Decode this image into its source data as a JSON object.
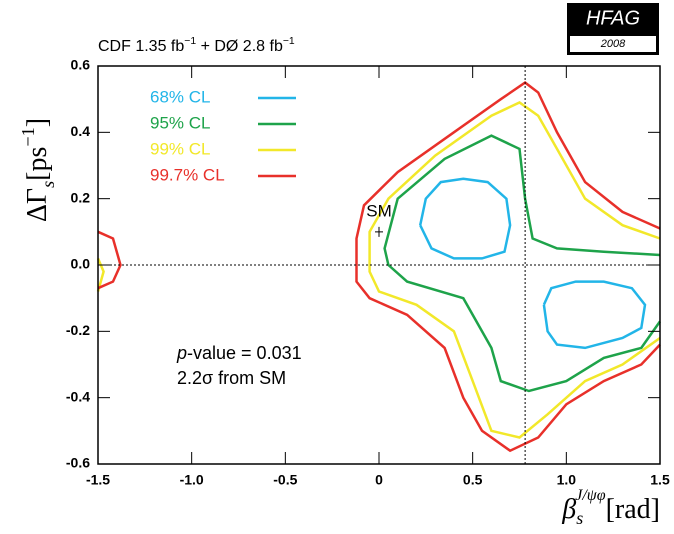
{
  "chart_data": {
    "type": "contour",
    "title_parts": [
      "CDF  1.35 fb",
      "−1",
      " + DØ  2.8 fb",
      "−1"
    ],
    "logo": {
      "title": "HFAG",
      "year": "2008"
    },
    "y_label_parts": [
      "ΔΓ",
      "s",
      "[ps",
      "−1",
      "]"
    ],
    "x_label_parts": [
      "β",
      "s",
      "J/ψφ",
      "[rad]"
    ],
    "annotations": [
      [
        "p",
        "-value = 0.031"
      ],
      [
        "2.2σ   from SM"
      ]
    ],
    "sm_point": {
      "x": 0,
      "y": 0.1,
      "label": "SM"
    },
    "hline": 0,
    "vline": 0.78,
    "xlim": [
      -1.5,
      1.5
    ],
    "ylim": [
      -0.6,
      0.6
    ],
    "xticks": [
      -1.5,
      {
        "value": -1,
        "label": "-1.0"
      },
      -0.5,
      0,
      0.5,
      {
        "value": 1,
        "label": "1.0"
      },
      1.5
    ],
    "yticks": [
      -0.6,
      -0.4,
      -0.2,
      {
        "value": 0,
        "label": "0.0"
      },
      0.2,
      0.4,
      0.6
    ],
    "legend": "upper left",
    "series": [
      {
        "name": "68% CL",
        "color": "#22b5e8",
        "pieces": [
          {
            "x": [
              0.22,
              0.25,
              0.33,
              0.45,
              0.58,
              0.68,
              0.7,
              0.67,
              0.55,
              0.4,
              0.28,
              0.22
            ],
            "y": [
              0.12,
              0.2,
              0.25,
              0.26,
              0.25,
              0.2,
              0.12,
              0.04,
              0.02,
              0.02,
              0.05,
              0.12
            ]
          },
          {
            "x": [
              0.88,
              0.92,
              1.05,
              1.2,
              1.35,
              1.42,
              1.4,
              1.3,
              1.1,
              0.95,
              0.9,
              0.88
            ],
            "y": [
              -0.12,
              -0.07,
              -0.05,
              -0.05,
              -0.07,
              -0.12,
              -0.19,
              -0.22,
              -0.25,
              -0.24,
              -0.2,
              -0.12
            ]
          }
        ]
      },
      {
        "name": "95% CL",
        "color": "#1ea34a",
        "pieces": [
          {
            "x": [
              1.5,
              1.2,
              0.95,
              0.82,
              0.78,
              0.75,
              0.6,
              0.35,
              0.1,
              0.03,
              0.05,
              0.15,
              0.45,
              0.6,
              0.65,
              0.8,
              1.0,
              1.2,
              1.4,
              1.5
            ],
            "y": [
              0.03,
              0.04,
              0.05,
              0.08,
              0.2,
              0.35,
              0.39,
              0.32,
              0.2,
              0.05,
              0,
              -0.05,
              -0.1,
              -0.25,
              -0.35,
              -0.38,
              -0.35,
              -0.28,
              -0.25,
              -0.17
            ]
          }
        ]
      },
      {
        "name": "99% CL",
        "color": "#f2e82a",
        "pieces": [
          {
            "x": [
              -1.5,
              -1.47,
              -1.5
            ],
            "y": [
              0.02,
              -0.02,
              -0.08
            ]
          },
          {
            "x": [
              1.5,
              1.3,
              1.1,
              0.95,
              0.85,
              0.75,
              0.6,
              0.3,
              0.05,
              -0.05,
              -0.05,
              0,
              0.2,
              0.4,
              0.5,
              0.6,
              0.75,
              0.9,
              1.1,
              1.3,
              1.5
            ],
            "y": [
              0.08,
              0.12,
              0.2,
              0.35,
              0.45,
              0.49,
              0.45,
              0.33,
              0.2,
              0.1,
              -0.02,
              -0.08,
              -0.12,
              -0.2,
              -0.35,
              -0.5,
              -0.52,
              -0.45,
              -0.35,
              -0.3,
              -0.22
            ]
          }
        ]
      },
      {
        "name": "99.7% CL",
        "color": "#e8302a",
        "pieces": [
          {
            "x": [
              -1.5,
              -1.42,
              -1.38,
              -1.42,
              -1.5
            ],
            "y": [
              0.1,
              0.08,
              0,
              -0.05,
              -0.07
            ]
          },
          {
            "x": [
              1.5,
              1.3,
              1.1,
              0.95,
              0.85,
              0.78,
              0.65,
              0.4,
              0.1,
              -0.08,
              -0.12,
              -0.12,
              -0.05,
              0.15,
              0.35,
              0.45,
              0.55,
              0.7,
              0.85,
              1.0,
              1.2,
              1.4,
              1.5
            ],
            "y": [
              0.11,
              0.16,
              0.25,
              0.4,
              0.52,
              0.55,
              0.5,
              0.4,
              0.28,
              0.18,
              0.08,
              -0.05,
              -0.1,
              -0.15,
              -0.25,
              -0.4,
              -0.5,
              -0.56,
              -0.52,
              -0.42,
              -0.35,
              -0.3,
              -0.24
            ]
          }
        ]
      }
    ]
  }
}
